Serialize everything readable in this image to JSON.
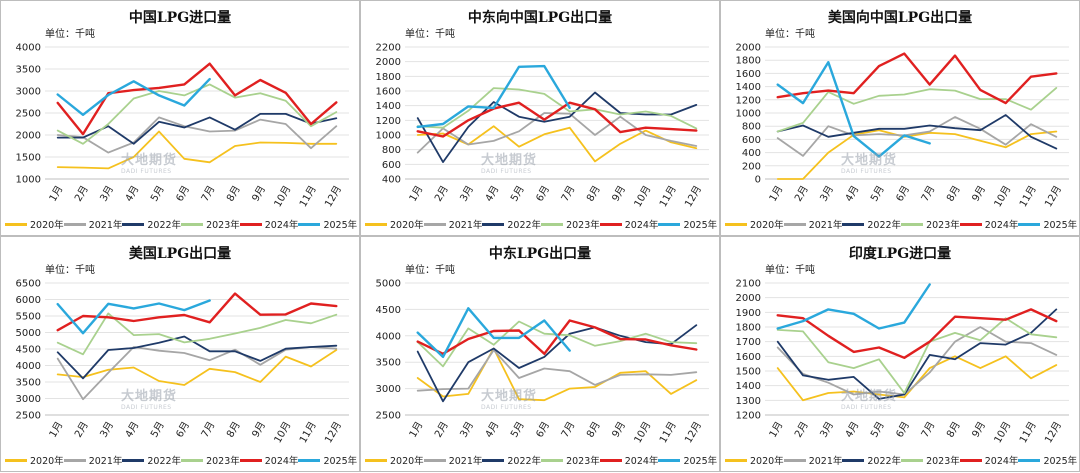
{
  "unit_label": "单位：千吨",
  "watermark": "大地期货",
  "watermark_sub": "DADI FUTURES",
  "legend": [
    "2020年",
    "2021年",
    "2022年",
    "2023年",
    "2024年",
    "2025年"
  ],
  "colors": {
    "2020年": "#f5c11e",
    "2021年": "#a6a6a6",
    "2022年": "#1f3a68",
    "2023年": "#a9d18e",
    "2024年": "#e02020",
    "2025年": "#2aa8dc"
  },
  "months": [
    "1月",
    "2月",
    "3月",
    "4月",
    "5月",
    "6月",
    "7月",
    "8月",
    "9月",
    "10月",
    "11月",
    "12月"
  ],
  "chart_data": [
    {
      "type": "line",
      "title": "中国LPG进口量",
      "ylim": [
        1000,
        4000
      ],
      "yticks": [
        1000,
        1500,
        2000,
        2500,
        3000,
        3500,
        4000
      ],
      "series": [
        {
          "name": "2020年",
          "values": [
            1270,
            1260,
            1240,
            1500,
            2080,
            1460,
            1380,
            1750,
            1830,
            1820,
            1800,
            1800
          ]
        },
        {
          "name": "2021年",
          "values": [
            2000,
            1950,
            1600,
            1830,
            2400,
            2200,
            2080,
            2100,
            2350,
            2250,
            1700,
            2200
          ]
        },
        {
          "name": "2022年",
          "values": [
            1940,
            1940,
            2200,
            1800,
            2300,
            2170,
            2400,
            2120,
            2480,
            2480,
            2260,
            2380
          ]
        },
        {
          "name": "2023年",
          "values": [
            2100,
            1800,
            2250,
            2830,
            3000,
            2900,
            3150,
            2850,
            2950,
            2780,
            2200,
            2520
          ]
        },
        {
          "name": "2024年",
          "values": [
            2730,
            2020,
            2950,
            3020,
            3070,
            3150,
            3620,
            2900,
            3250,
            2960,
            2250,
            2740
          ]
        },
        {
          "name": "2025年",
          "values": [
            2920,
            2460,
            2910,
            3220,
            2900,
            2670,
            3270
          ]
        }
      ]
    },
    {
      "type": "line",
      "title": "中东向中国LPG出口量",
      "ylim": [
        400,
        2200
      ],
      "yticks": [
        400,
        600,
        800,
        1000,
        1200,
        1400,
        1600,
        1800,
        2000,
        2200
      ],
      "series": [
        {
          "name": "2020年",
          "values": [
            1000,
            1020,
            870,
            1120,
            840,
            1010,
            1100,
            640,
            880,
            1060,
            900,
            820
          ]
        },
        {
          "name": "2021年",
          "values": [
            760,
            1090,
            870,
            920,
            1050,
            1300,
            1290,
            1000,
            1250,
            1000,
            920,
            850
          ]
        },
        {
          "name": "2022年",
          "values": [
            1230,
            630,
            1110,
            1450,
            1250,
            1180,
            1250,
            1580,
            1300,
            1280,
            1280,
            1410
          ]
        },
        {
          "name": "2023年",
          "values": [
            1120,
            1100,
            1330,
            1640,
            1620,
            1560,
            1320,
            1350,
            1280,
            1320,
            1260,
            1090
          ]
        },
        {
          "name": "2024年",
          "values": [
            1050,
            980,
            1200,
            1360,
            1440,
            1210,
            1440,
            1350,
            1040,
            1100,
            1080,
            1060
          ]
        },
        {
          "name": "2025年",
          "values": [
            1110,
            1150,
            1390,
            1370,
            1930,
            1940,
            1370
          ]
        }
      ]
    },
    {
      "type": "line",
      "title": "美国向中国LPG出口量",
      "ylim": [
        0,
        2000
      ],
      "yticks": [
        0,
        200,
        400,
        600,
        800,
        1000,
        1200,
        1400,
        1600,
        1800,
        2000
      ],
      "series": [
        {
          "name": "2020年",
          "values": [
            0,
            0,
            400,
            670,
            740,
            640,
            700,
            680,
            580,
            480,
            680,
            720
          ]
        },
        {
          "name": "2021年",
          "values": [
            620,
            350,
            800,
            660,
            680,
            660,
            720,
            940,
            760,
            520,
            830,
            640
          ]
        },
        {
          "name": "2022年",
          "values": [
            720,
            810,
            640,
            700,
            760,
            760,
            810,
            770,
            740,
            970,
            640,
            460
          ]
        },
        {
          "name": "2023年",
          "values": [
            720,
            850,
            1320,
            1140,
            1260,
            1280,
            1360,
            1340,
            1210,
            1210,
            1050,
            1380
          ]
        },
        {
          "name": "2024年",
          "values": [
            1240,
            1300,
            1340,
            1300,
            1710,
            1900,
            1430,
            1870,
            1350,
            1150,
            1550,
            1600
          ]
        },
        {
          "name": "2025年",
          "values": [
            1430,
            1150,
            1770,
            650,
            340,
            660,
            540
          ]
        }
      ]
    },
    {
      "type": "line",
      "title": "美国LPG出口量",
      "ylim": [
        2500,
        6500
      ],
      "yticks": [
        2500,
        3000,
        3500,
        4000,
        4500,
        5000,
        5500,
        6000,
        6500
      ],
      "series": [
        {
          "name": "2020年",
          "values": [
            3730,
            3650,
            3870,
            3940,
            3530,
            3410,
            3900,
            3800,
            3500,
            4270,
            3970,
            4470
          ]
        },
        {
          "name": "2021年",
          "values": [
            4210,
            2980,
            3780,
            4560,
            4450,
            4380,
            4160,
            4480,
            4020,
            4480,
            4560,
            4510
          ]
        },
        {
          "name": "2022年",
          "values": [
            4400,
            3610,
            4470,
            4530,
            4690,
            4880,
            4430,
            4430,
            4140,
            4510,
            4560,
            4600
          ]
        },
        {
          "name": "2023年",
          "values": [
            4690,
            4340,
            5580,
            4920,
            4950,
            4700,
            4810,
            4970,
            5140,
            5380,
            5280,
            5540
          ]
        },
        {
          "name": "2024年",
          "values": [
            5070,
            5500,
            5460,
            5350,
            5460,
            5530,
            5310,
            6180,
            5540,
            5550,
            5880,
            5800
          ]
        },
        {
          "name": "2025年",
          "values": [
            5860,
            4980,
            5870,
            5730,
            5880,
            5680,
            5970
          ]
        }
      ]
    },
    {
      "type": "line",
      "title": "中东LPG出口量",
      "ylim": [
        2500,
        5000
      ],
      "yticks": [
        2500,
        3000,
        3500,
        4000,
        4500,
        5000
      ],
      "series": [
        {
          "name": "2020年",
          "values": [
            3200,
            2850,
            2900,
            3760,
            2800,
            2780,
            3000,
            3030,
            3300,
            3330,
            2900,
            3160
          ]
        },
        {
          "name": "2021年",
          "values": [
            2960,
            2990,
            3000,
            3730,
            3200,
            3380,
            3330,
            3070,
            3260,
            3270,
            3260,
            3310
          ]
        },
        {
          "name": "2022年",
          "values": [
            3700,
            2760,
            3500,
            3760,
            3390,
            3600,
            4040,
            4160,
            4000,
            3880,
            3840,
            4200
          ]
        },
        {
          "name": "2023年",
          "values": [
            3880,
            3420,
            4140,
            3830,
            4270,
            4040,
            4010,
            3810,
            3900,
            4040,
            3880,
            3860
          ]
        },
        {
          "name": "2024年",
          "values": [
            3890,
            3660,
            3940,
            4090,
            4100,
            3660,
            4290,
            4160,
            3940,
            3930,
            3820,
            3740
          ]
        },
        {
          "name": "2025年",
          "values": [
            4060,
            3600,
            4520,
            3960,
            3960,
            4290,
            3720
          ]
        }
      ]
    },
    {
      "type": "line",
      "title": "印度LPG进口量",
      "ylim": [
        1200,
        2100
      ],
      "yticks": [
        1200,
        1300,
        1400,
        1500,
        1600,
        1700,
        1800,
        1900,
        2000,
        2100
      ],
      "series": [
        {
          "name": "2020年",
          "values": [
            1520,
            1300,
            1350,
            1360,
            1340,
            1320,
            1520,
            1600,
            1520,
            1600,
            1450,
            1540
          ]
        },
        {
          "name": "2021年",
          "values": [
            1660,
            1480,
            1420,
            1340,
            1360,
            1340,
            1490,
            1700,
            1800,
            1700,
            1690,
            1610
          ]
        },
        {
          "name": "2022年",
          "values": [
            1700,
            1470,
            1440,
            1460,
            1310,
            1340,
            1610,
            1580,
            1690,
            1680,
            1760,
            1920
          ]
        },
        {
          "name": "2023年",
          "values": [
            1780,
            1770,
            1560,
            1520,
            1580,
            1350,
            1700,
            1760,
            1710,
            1860,
            1750,
            1730
          ]
        },
        {
          "name": "2024年",
          "values": [
            1880,
            1860,
            1740,
            1630,
            1660,
            1590,
            1700,
            1870,
            1860,
            1850,
            1920,
            1840
          ]
        },
        {
          "name": "2025年",
          "values": [
            1790,
            1840,
            1920,
            1890,
            1790,
            1830,
            2090
          ]
        }
      ]
    }
  ]
}
